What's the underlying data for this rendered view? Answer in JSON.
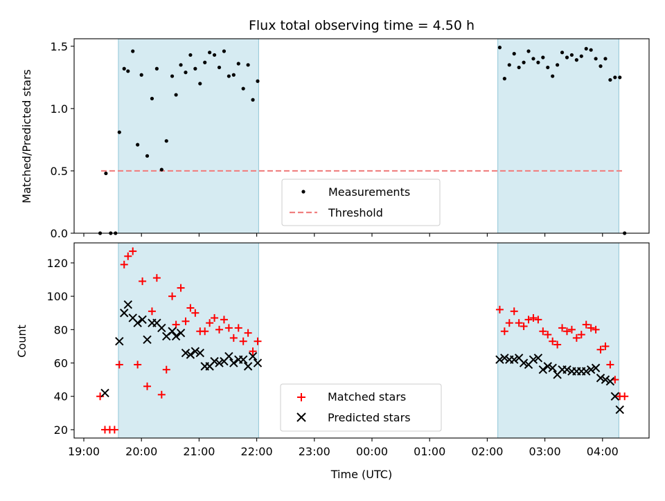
{
  "chart_data": [
    {
      "type": "scatter",
      "title": "Flux total observing time = 4.50 h",
      "xlabel": "",
      "ylabel": "Matched/Predicted stars",
      "ylim": [
        0,
        1.56
      ],
      "yticks": [
        "0.0",
        "0.5",
        "1.0",
        "1.5"
      ],
      "ytick_values": [
        0,
        0.5,
        1.0,
        1.5
      ],
      "shaded_periods": [
        [
          "19:36",
          "22:02"
        ],
        [
          "02:11",
          "04:17"
        ]
      ],
      "legend": {
        "position": "lower center",
        "entries": [
          "Measurements",
          "Threshold"
        ]
      },
      "threshold": {
        "name": "Threshold",
        "value": 0.5,
        "x_range": [
          "19:18",
          "04:23"
        ],
        "color": "#f08080"
      },
      "series": [
        {
          "name": "Measurements",
          "marker": "dot",
          "color": "#000000",
          "points": [
            [
              "19:17",
              0.0
            ],
            [
              "19:23",
              0.48
            ],
            [
              "19:28",
              0.0
            ],
            [
              "19:33",
              0.0
            ],
            [
              "19:37",
              0.81
            ],
            [
              "19:42",
              1.32
            ],
            [
              "19:46",
              1.3
            ],
            [
              "19:51",
              1.46
            ],
            [
              "19:56",
              0.71
            ],
            [
              "20:00",
              1.27
            ],
            [
              "20:06",
              0.62
            ],
            [
              "20:11",
              1.08
            ],
            [
              "20:16",
              1.32
            ],
            [
              "20:21",
              0.51
            ],
            [
              "20:26",
              0.74
            ],
            [
              "20:32",
              1.26
            ],
            [
              "20:36",
              1.11
            ],
            [
              "20:41",
              1.35
            ],
            [
              "20:46",
              1.29
            ],
            [
              "20:51",
              1.43
            ],
            [
              "20:56",
              1.32
            ],
            [
              "21:01",
              1.2
            ],
            [
              "21:06",
              1.37
            ],
            [
              "21:11",
              1.45
            ],
            [
              "21:16",
              1.43
            ],
            [
              "21:21",
              1.33
            ],
            [
              "21:26",
              1.46
            ],
            [
              "21:31",
              1.26
            ],
            [
              "21:36",
              1.27
            ],
            [
              "21:41",
              1.36
            ],
            [
              "21:46",
              1.16
            ],
            [
              "21:51",
              1.35
            ],
            [
              "21:56",
              1.07
            ],
            [
              "22:01",
              1.22
            ],
            [
              "02:13",
              1.49
            ],
            [
              "02:18",
              1.24
            ],
            [
              "02:23",
              1.35
            ],
            [
              "02:28",
              1.44
            ],
            [
              "02:33",
              1.33
            ],
            [
              "02:38",
              1.37
            ],
            [
              "02:43",
              1.46
            ],
            [
              "02:48",
              1.4
            ],
            [
              "02:53",
              1.37
            ],
            [
              "02:58",
              1.41
            ],
            [
              "03:03",
              1.33
            ],
            [
              "03:08",
              1.26
            ],
            [
              "03:13",
              1.35
            ],
            [
              "03:18",
              1.45
            ],
            [
              "03:23",
              1.41
            ],
            [
              "03:28",
              1.43
            ],
            [
              "03:33",
              1.39
            ],
            [
              "03:38",
              1.42
            ],
            [
              "03:43",
              1.48
            ],
            [
              "03:48",
              1.47
            ],
            [
              "03:53",
              1.4
            ],
            [
              "03:58",
              1.34
            ],
            [
              "04:03",
              1.4
            ],
            [
              "04:08",
              1.23
            ],
            [
              "04:13",
              1.25
            ],
            [
              "04:18",
              1.25
            ],
            [
              "04:23",
              0.0
            ]
          ]
        }
      ]
    },
    {
      "type": "scatter",
      "title": "",
      "xlabel": "Time (UTC)",
      "ylabel": "Count",
      "ylim": [
        15,
        132
      ],
      "yticks": [
        "20",
        "40",
        "60",
        "80",
        "100",
        "120"
      ],
      "ytick_values": [
        20,
        40,
        60,
        80,
        100,
        120
      ],
      "xticks": [
        "19:00",
        "20:00",
        "21:00",
        "22:00",
        "23:00",
        "00:00",
        "01:00",
        "02:00",
        "03:00",
        "04:00"
      ],
      "shaded_periods": [
        [
          "19:36",
          "22:02"
        ],
        [
          "02:11",
          "04:17"
        ]
      ],
      "legend": {
        "position": "lower center",
        "entries": [
          "Matched stars",
          "Predicted stars"
        ]
      },
      "series": [
        {
          "name": "Matched stars",
          "marker": "plus",
          "color": "#ff0000",
          "points": [
            [
              "19:17",
              40
            ],
            [
              "19:22",
              20
            ],
            [
              "19:27",
              20
            ],
            [
              "19:32",
              20
            ],
            [
              "19:37",
              59
            ],
            [
              "19:42",
              119
            ],
            [
              "19:46",
              124
            ],
            [
              "19:51",
              127
            ],
            [
              "19:56",
              59
            ],
            [
              "20:01",
              109
            ],
            [
              "20:06",
              46
            ],
            [
              "20:11",
              91
            ],
            [
              "20:16",
              111
            ],
            [
              "20:21",
              41
            ],
            [
              "20:26",
              56
            ],
            [
              "20:32",
              100
            ],
            [
              "20:36",
              83
            ],
            [
              "20:41",
              105
            ],
            [
              "20:46",
              85
            ],
            [
              "20:51",
              93
            ],
            [
              "20:56",
              90
            ],
            [
              "21:01",
              79
            ],
            [
              "21:06",
              79
            ],
            [
              "21:11",
              84
            ],
            [
              "21:16",
              87
            ],
            [
              "21:21",
              80
            ],
            [
              "21:26",
              86
            ],
            [
              "21:31",
              81
            ],
            [
              "21:36",
              75
            ],
            [
              "21:41",
              81
            ],
            [
              "21:46",
              73
            ],
            [
              "21:51",
              78
            ],
            [
              "21:56",
              67
            ],
            [
              "22:01",
              73
            ],
            [
              "02:13",
              92
            ],
            [
              "02:18",
              79
            ],
            [
              "02:23",
              84
            ],
            [
              "02:28",
              91
            ],
            [
              "02:33",
              84
            ],
            [
              "02:38",
              82
            ],
            [
              "02:43",
              86
            ],
            [
              "02:48",
              87
            ],
            [
              "02:53",
              86
            ],
            [
              "02:58",
              79
            ],
            [
              "03:03",
              77
            ],
            [
              "03:08",
              73
            ],
            [
              "03:13",
              71
            ],
            [
              "03:18",
              81
            ],
            [
              "03:23",
              79
            ],
            [
              "03:28",
              80
            ],
            [
              "03:33",
              75
            ],
            [
              "03:38",
              77
            ],
            [
              "03:43",
              83
            ],
            [
              "03:48",
              81
            ],
            [
              "03:53",
              80
            ],
            [
              "03:58",
              68
            ],
            [
              "04:03",
              70
            ],
            [
              "04:08",
              59
            ],
            [
              "04:13",
              50
            ],
            [
              "04:18",
              40
            ],
            [
              "04:23",
              40
            ]
          ]
        },
        {
          "name": "Predicted stars",
          "marker": "x",
          "color": "#000000",
          "points": [
            [
              "19:22",
              42
            ],
            [
              "19:37",
              73
            ],
            [
              "19:42",
              90
            ],
            [
              "19:46",
              95
            ],
            [
              "19:51",
              87
            ],
            [
              "19:56",
              84
            ],
            [
              "20:01",
              86
            ],
            [
              "20:06",
              74
            ],
            [
              "20:11",
              84
            ],
            [
              "20:16",
              84
            ],
            [
              "20:21",
              81
            ],
            [
              "20:26",
              76
            ],
            [
              "20:32",
              79
            ],
            [
              "20:36",
              76
            ],
            [
              "20:41",
              78
            ],
            [
              "20:46",
              66
            ],
            [
              "20:51",
              65
            ],
            [
              "20:56",
              67
            ],
            [
              "21:01",
              66
            ],
            [
              "21:06",
              58
            ],
            [
              "21:11",
              58
            ],
            [
              "21:16",
              61
            ],
            [
              "21:21",
              60
            ],
            [
              "21:26",
              61
            ],
            [
              "21:31",
              64
            ],
            [
              "21:36",
              60
            ],
            [
              "21:41",
              62
            ],
            [
              "21:46",
              62
            ],
            [
              "21:51",
              58
            ],
            [
              "21:56",
              64
            ],
            [
              "22:01",
              60
            ],
            [
              "02:13",
              62
            ],
            [
              "02:18",
              63
            ],
            [
              "02:23",
              62
            ],
            [
              "02:28",
              62
            ],
            [
              "02:33",
              63
            ],
            [
              "02:38",
              60
            ],
            [
              "02:43",
              59
            ],
            [
              "02:48",
              62
            ],
            [
              "02:53",
              63
            ],
            [
              "02:58",
              56
            ],
            [
              "03:03",
              58
            ],
            [
              "03:08",
              57
            ],
            [
              "03:13",
              53
            ],
            [
              "03:18",
              56
            ],
            [
              "03:23",
              56
            ],
            [
              "03:28",
              55
            ],
            [
              "03:33",
              55
            ],
            [
              "03:38",
              55
            ],
            [
              "03:43",
              55
            ],
            [
              "03:48",
              56
            ],
            [
              "03:53",
              57
            ],
            [
              "03:58",
              51
            ],
            [
              "04:03",
              50
            ],
            [
              "04:08",
              49
            ],
            [
              "04:13",
              40
            ],
            [
              "04:18",
              32
            ]
          ]
        }
      ]
    }
  ]
}
